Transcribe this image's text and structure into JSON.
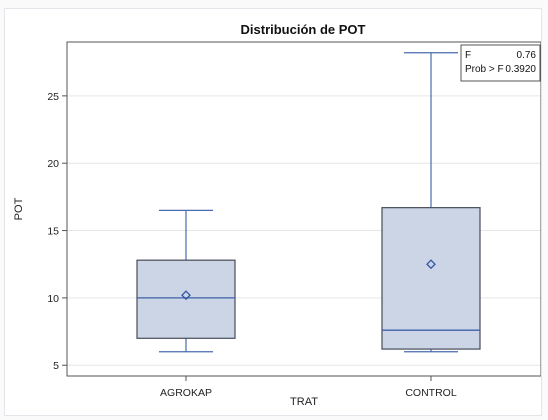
{
  "chart_data": {
    "type": "boxplot",
    "title": "Distribución de POT",
    "xlabel": "TRAT",
    "ylabel": "POT",
    "ylim": [
      4.2,
      29.0
    ],
    "yticks": [
      5,
      10,
      15,
      20,
      25
    ],
    "grid": true,
    "categories": [
      "AGROKAP",
      "CONTROL"
    ],
    "boxes": [
      {
        "category": "AGROKAP",
        "min": 6.0,
        "q1": 7.0,
        "median": 10.0,
        "q3": 12.8,
        "max": 16.5,
        "mean": 10.2
      },
      {
        "category": "CONTROL",
        "min": 6.0,
        "q1": 6.2,
        "median": 7.6,
        "q3": 16.7,
        "max": 28.2,
        "mean": 12.5
      }
    ],
    "stats_box": {
      "placement": "top-right",
      "rows": [
        {
          "label": "F",
          "value": "0.76"
        },
        {
          "label": "Prob > F",
          "value": "0.3920"
        }
      ]
    },
    "colors": {
      "box_fill": "#ccd5e5",
      "box_edge": "#464c58",
      "whisker": "#4a6bb0",
      "median": "#3e5fa8",
      "mean_marker": "#3355a5",
      "grid": "#e6e6e6",
      "axis": "#555555"
    }
  }
}
